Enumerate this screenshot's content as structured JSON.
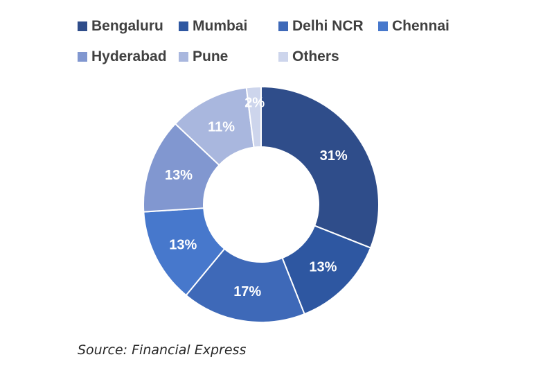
{
  "chart_data": {
    "type": "pie",
    "donut": true,
    "categories": [
      "Bengaluru",
      "Mumbai",
      "Delhi NCR",
      "Chennai",
      "Hyderabad",
      "Pune",
      "Others"
    ],
    "values": [
      31,
      13,
      17,
      13,
      13,
      11,
      2
    ],
    "data_labels": [
      "31%",
      "13%",
      "17%",
      "13%",
      "13%",
      "11%",
      "2%"
    ],
    "colors": [
      "#2f4d8a",
      "#2e57a1",
      "#3e69b8",
      "#4778cc",
      "#8197d0",
      "#a9b7de",
      "#cdd5ec"
    ],
    "legend_position": "top",
    "title": ""
  },
  "source": "Source: Financial Express"
}
